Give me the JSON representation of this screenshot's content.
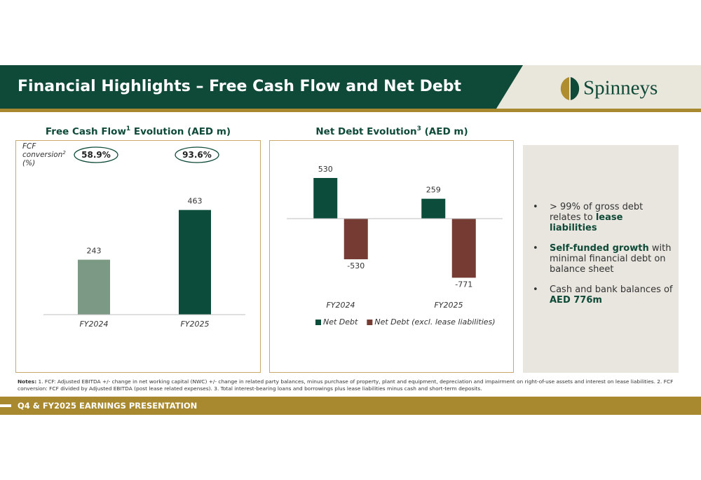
{
  "header": {
    "title": "Financial Highlights – Free Cash Flow and Net Debt",
    "logo": "Spinneys"
  },
  "chart_data": [
    {
      "type": "bar",
      "title": "Free Cash Flow",
      "title_sup": "1",
      "title_suffix": " Evolution (AED m)",
      "categories": [
        "FY2024",
        "FY2025"
      ],
      "values": [
        243,
        463
      ],
      "colors": [
        "#7b9985",
        "#0b4d3a"
      ],
      "ylim": [
        0,
        620
      ],
      "conversion_title": [
        "FCF",
        "conversion",
        "(%)"
      ],
      "conversion_title_sup": "2",
      "conversion": [
        58.9,
        93.6
      ],
      "conversion_labels": [
        "58.9%",
        "93.6%"
      ]
    },
    {
      "type": "bar",
      "title": "Net Debt Evolution",
      "title_sup": "3",
      "title_suffix": " (AED m)",
      "categories": [
        "FY2024",
        "FY2025"
      ],
      "series": [
        {
          "name": "Net Debt",
          "color": "#0b4d3a",
          "values": [
            530,
            259
          ]
        },
        {
          "name": "Net Debt (excl. lease liabilities)",
          "color": "#763c33",
          "values": [
            -530,
            -771
          ]
        }
      ],
      "ylim": [
        -1000,
        900
      ],
      "legend": "bottom"
    }
  ],
  "bullets": [
    [
      {
        "text": "> 99% of gross debt relates to ",
        "bold": false
      },
      {
        "text": "lease liabilities",
        "bold": true
      }
    ],
    [
      {
        "text": "Self-funded growth",
        "bold": true
      },
      {
        "text": " with minimal financial debt on balance sheet",
        "bold": false
      }
    ],
    [
      {
        "text": "Cash and bank balances of ",
        "bold": false
      },
      {
        "text": "AED 776m",
        "bold": true
      }
    ]
  ],
  "notes": {
    "label": "Notes:",
    "text": " 1. FCF: Adjusted EBITDA +/- change in net working capital (NWC) +/- change in related party balances, minus purchase of property, plant and equipment, depreciation and impairment on right-of-use assets and interest on lease liabilities. 2. FCF conversion: FCF divided by Adjusted EBITDA (post lease related expenses). 3. Total interest-bearing loans and borrowings plus lease liabilities minus cash and short-term deposits."
  },
  "footer": "Q4 & FY2025 EARNINGS PRESENTATION"
}
